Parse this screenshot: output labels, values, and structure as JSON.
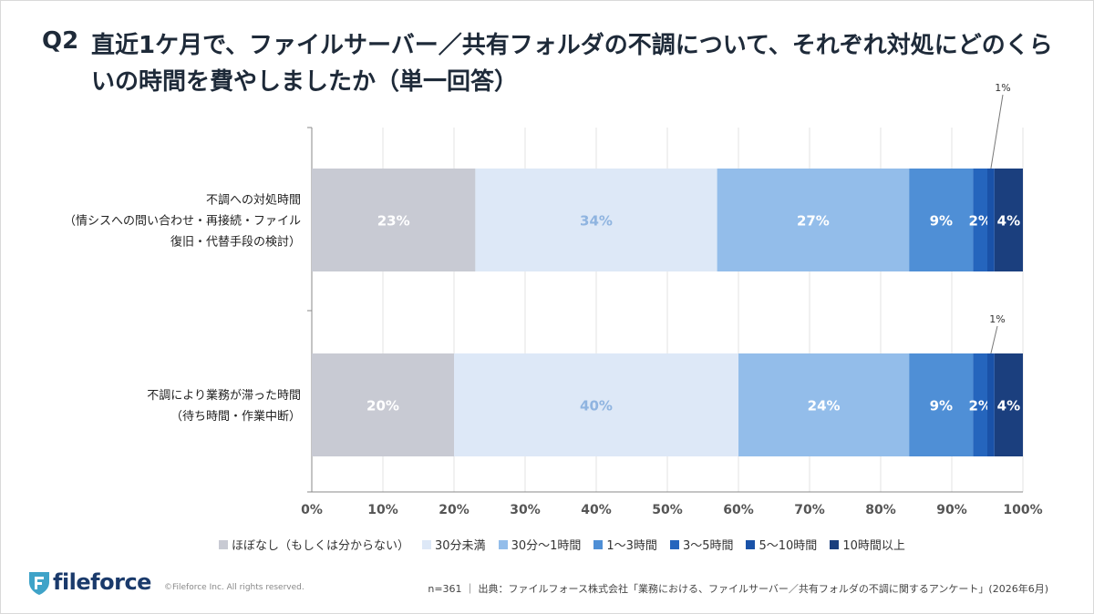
{
  "header": {
    "q_label": "Q2",
    "title": "直近1ケ月で、ファイルサーバー／共有フォルダの不調について、それぞれ対処にどのくらいの時間を費やしましたか（単一回答）"
  },
  "chart_data": {
    "type": "bar",
    "orientation": "horizontal",
    "stacked": true,
    "categories": [
      [
        "不調への対処時間",
        "（情シスへの問い合わせ・再接続・ファイル",
        "復旧・代替手段の検討）"
      ],
      [
        "不調により業務が滞った時間",
        "（待ち時間・作業中断）"
      ]
    ],
    "series": [
      {
        "name": "ほぼなし（もしくは分からない）",
        "values": [
          23,
          20
        ],
        "labels": [
          "23%",
          "20%"
        ],
        "color": "#c8cad3"
      },
      {
        "name": "30分未満",
        "values": [
          34,
          40
        ],
        "labels": [
          "34%",
          "40%"
        ],
        "color": "#dde8f7"
      },
      {
        "name": "30分〜1時間",
        "values": [
          27,
          24
        ],
        "labels": [
          "27%",
          "24%"
        ],
        "color": "#93bdea"
      },
      {
        "name": "1〜3時間",
        "values": [
          9,
          9
        ],
        "labels": [
          "9%",
          "9%"
        ],
        "color": "#4f8fd6"
      },
      {
        "name": "3〜5時間",
        "values": [
          2,
          2
        ],
        "labels": [
          "2%",
          "2%"
        ],
        "color": "#2565bd"
      },
      {
        "name": "5〜10時間",
        "values": [
          1,
          1
        ],
        "labels": [
          "1%",
          "1%"
        ],
        "color": "#1a52a8"
      },
      {
        "name": "10時間以上",
        "values": [
          4,
          4
        ],
        "labels": [
          "4%",
          "4%"
        ],
        "color": "#1b3f7e"
      }
    ],
    "xlim": [
      0,
      100
    ],
    "xticks": [
      "0%",
      "10%",
      "20%",
      "30%",
      "40%",
      "50%",
      "60%",
      "70%",
      "80%",
      "90%",
      "100%"
    ],
    "grid": true,
    "legend_position": "bottom"
  },
  "footer": {
    "logo_text": "fileforce",
    "copyright": "©Fileforce Inc. All rights reserved.",
    "source": "n=361 ｜ 出典：ファイルフォース株式会社「業務における、ファイルサーバー／共有フォルダの不調に関するアンケート」(2026年6月)"
  }
}
